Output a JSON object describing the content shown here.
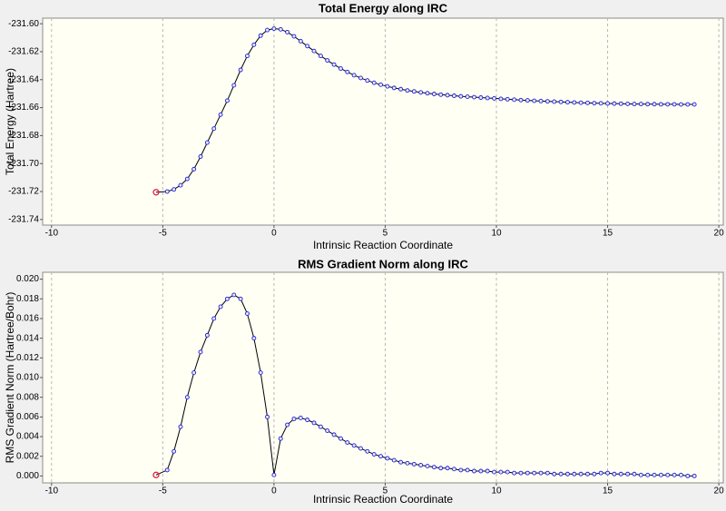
{
  "chart_data": [
    {
      "type": "line",
      "title": "Total Energy along IRC",
      "xlabel": "Intrinsic Reaction Coordinate",
      "ylabel": "Total Energy (Hartree)",
      "x": [
        -5.3,
        -4.8,
        -4.5,
        -4.2,
        -3.9,
        -3.6,
        -3.3,
        -3.0,
        -2.7,
        -2.4,
        -2.1,
        -1.8,
        -1.5,
        -1.2,
        -0.9,
        -0.6,
        -0.3,
        0,
        0.3,
        0.6,
        0.9,
        1.2,
        1.5,
        1.8,
        2.1,
        2.4,
        2.7,
        3.0,
        3.3,
        3.6,
        3.9,
        4.2,
        4.5,
        4.8,
        5.1,
        5.4,
        5.7,
        6.0,
        6.3,
        6.6,
        6.9,
        7.2,
        7.5,
        7.8,
        8.1,
        8.4,
        8.7,
        9.0,
        9.3,
        9.6,
        9.9,
        10.2,
        10.5,
        10.8,
        11.1,
        11.4,
        11.7,
        12.0,
        12.3,
        12.6,
        12.9,
        13.2,
        13.5,
        13.8,
        14.1,
        14.4,
        14.7,
        15.0,
        15.3,
        15.6,
        15.9,
        16.2,
        16.5,
        16.8,
        17.1,
        17.4,
        17.7,
        18.0,
        18.3,
        18.6,
        18.9
      ],
      "values": [
        -231.7205,
        -231.72,
        -231.7185,
        -231.7155,
        -231.711,
        -231.704,
        -231.695,
        -231.685,
        -231.675,
        -231.665,
        -231.655,
        -231.644,
        -231.633,
        -231.623,
        -231.615,
        -231.6085,
        -231.6045,
        -231.6035,
        -231.604,
        -231.606,
        -231.609,
        -231.6125,
        -231.616,
        -231.6195,
        -231.623,
        -231.6262,
        -231.6292,
        -231.632,
        -231.6345,
        -231.6368,
        -231.6388,
        -231.6406,
        -231.6422,
        -231.6436,
        -231.6448,
        -231.6459,
        -231.6468,
        -231.6477,
        -231.6484,
        -231.6491,
        -231.6497,
        -231.6502,
        -231.6507,
        -231.6511,
        -231.6515,
        -231.6519,
        -231.6522,
        -231.6525,
        -231.6528,
        -231.6531,
        -231.6534,
        -231.6537,
        -231.654,
        -231.6543,
        -231.6546,
        -231.6548,
        -231.6551,
        -231.6553,
        -231.6555,
        -231.6557,
        -231.6559,
        -231.6561,
        -231.6563,
        -231.6565,
        -231.6566,
        -231.6568,
        -231.6569,
        -231.657,
        -231.6571,
        -231.6572,
        -231.6573,
        -231.6574,
        -231.6574,
        -231.6575,
        -231.6575,
        -231.6576,
        -231.6576,
        -231.6576,
        -231.6577,
        -231.6577,
        -231.6577
      ],
      "color": "#000000",
      "marker_color": "#2020d0",
      "current_point_color": "#e02040",
      "xlim": [
        -10.4,
        20.2
      ],
      "xticks": [
        -10,
        -5,
        0,
        5,
        10,
        15,
        20
      ],
      "ylim": [
        -231.744,
        -231.596
      ],
      "yticks": [
        {
          "value": -231.6,
          "label": "-231.60"
        },
        -231.62,
        -231.64,
        -231.66,
        -231.68,
        {
          "value": -231.7,
          "label": "-231.70"
        },
        -231.72,
        -231.74
      ],
      "xgrid": true
    },
    {
      "type": "line",
      "title": "RMS Gradient Norm along IRC",
      "xlabel": "Intrinsic Reaction Coordinate",
      "ylabel": "RMS Gradient Norm (Hartree/Bohr)",
      "x": [
        -5.3,
        -4.8,
        -4.5,
        -4.2,
        -3.9,
        -3.6,
        -3.3,
        -3.0,
        -2.7,
        -2.4,
        -2.1,
        -1.8,
        -1.5,
        -1.2,
        -0.9,
        -0.6,
        -0.3,
        0,
        0.3,
        0.6,
        0.9,
        1.2,
        1.5,
        1.8,
        2.1,
        2.4,
        2.7,
        3.0,
        3.3,
        3.6,
        3.9,
        4.2,
        4.5,
        4.8,
        5.1,
        5.4,
        5.7,
        6.0,
        6.3,
        6.6,
        6.9,
        7.2,
        7.5,
        7.8,
        8.1,
        8.4,
        8.7,
        9.0,
        9.3,
        9.6,
        9.9,
        10.2,
        10.5,
        10.8,
        11.1,
        11.4,
        11.7,
        12.0,
        12.3,
        12.6,
        12.9,
        13.2,
        13.5,
        13.8,
        14.1,
        14.4,
        14.7,
        15.0,
        15.3,
        15.6,
        15.9,
        16.2,
        16.5,
        16.8,
        17.1,
        17.4,
        17.7,
        18.0,
        18.3,
        18.6,
        18.9
      ],
      "values": [
        0.0001,
        0.0006,
        0.0025,
        0.005,
        0.008,
        0.0105,
        0.0126,
        0.0143,
        0.016,
        0.0172,
        0.018,
        0.0184,
        0.018,
        0.0165,
        0.014,
        0.0105,
        0.006,
        0.0001,
        0.0038,
        0.0052,
        0.0058,
        0.0059,
        0.0057,
        0.0054,
        0.005,
        0.0046,
        0.0042,
        0.0038,
        0.0034,
        0.0031,
        0.0028,
        0.0025,
        0.0022,
        0.002,
        0.0018,
        0.0016,
        0.0014,
        0.0013,
        0.0012,
        0.0011,
        0.001,
        0.0009,
        0.0008,
        0.0008,
        0.0007,
        0.0006,
        0.0006,
        0.0005,
        0.0005,
        0.0005,
        0.0004,
        0.0004,
        0.0004,
        0.0003,
        0.0003,
        0.0003,
        0.0003,
        0.0003,
        0.0003,
        0.0002,
        0.0002,
        0.0002,
        0.0002,
        0.0002,
        0.0002,
        0.0002,
        0.0003,
        0.0003,
        0.0002,
        0.0002,
        0.0002,
        0.0002,
        0.0001,
        0.0001,
        0.0001,
        0.0001,
        0.0001,
        0.0001,
        0.0001,
        0,
        0
      ],
      "color": "#000000",
      "marker_color": "#2020d0",
      "current_point_color": "#e02040",
      "xlim": [
        -10.4,
        20.2
      ],
      "xticks": [
        -10,
        -5,
        0,
        5,
        10,
        15,
        20
      ],
      "ylim": [
        -0.0007,
        0.0207
      ],
      "yticks": [
        {
          "value": 0,
          "label": "0.000"
        },
        0.002,
        0.004,
        0.006,
        0.008,
        {
          "value": 0.01,
          "label": "0.010"
        },
        0.012,
        0.014,
        0.016,
        0.018,
        {
          "value": 0.02,
          "label": "0.020"
        }
      ],
      "xgrid": true
    }
  ]
}
